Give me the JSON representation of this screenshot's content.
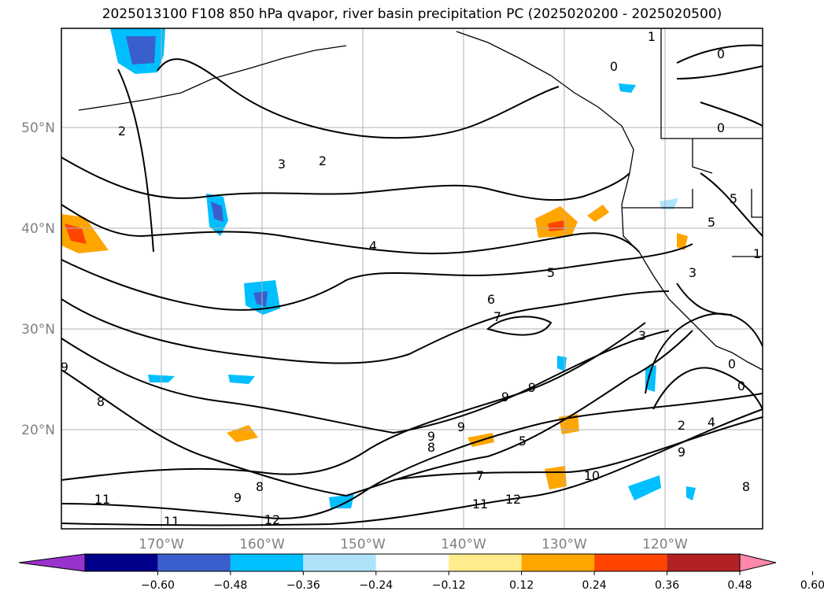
{
  "title": "2025013100 F108 850 hPa qvapor, river basin precipitation PC (2025020200 - 2025020500)",
  "map": {
    "lat_labels": [
      "50°N",
      "40°N",
      "30°N",
      "20°N"
    ],
    "lon_labels": [
      "170°W",
      "160°W",
      "150°W",
      "140°W",
      "130°W",
      "120°W"
    ],
    "contour_labels": [
      "1",
      "0",
      "0",
      "0",
      "2",
      "2",
      "3",
      "4",
      "5",
      "6",
      "7",
      "9",
      "9",
      "8",
      "9",
      "9",
      "9",
      "8",
      "5",
      "7",
      "10",
      "11",
      "12",
      "11",
      "12",
      "11",
      "9",
      "2",
      "4",
      "3",
      "3",
      "5",
      "5",
      "0",
      "0",
      "8",
      "9",
      "8",
      "1"
    ]
  },
  "colorbar": {
    "ticks": [
      "−0.60",
      "−0.48",
      "−0.36",
      "−0.24",
      "−0.12",
      "0.12",
      "0.24",
      "0.36",
      "0.48",
      "0.60"
    ],
    "colors": [
      "#9932cc",
      "#00008b",
      "#3a5fcd",
      "#00bfff",
      "#aee3fa",
      "#ffffff",
      "#ffec8b",
      "#ffa500",
      "#ff4500",
      "#b22222",
      "#ff88aa"
    ]
  }
}
